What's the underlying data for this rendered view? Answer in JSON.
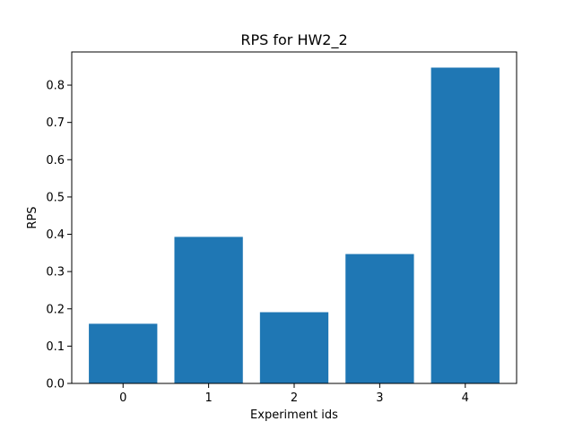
{
  "chart_data": {
    "type": "bar",
    "title": "RPS for HW2_2",
    "xlabel": "Experiment ids",
    "ylabel": "RPS",
    "categories": [
      "0",
      "1",
      "2",
      "3",
      "4"
    ],
    "values": [
      0.16,
      0.393,
      0.191,
      0.347,
      0.847
    ],
    "ylim": [
      0,
      0.889
    ],
    "yticks": [
      "0.0",
      "0.1",
      "0.2",
      "0.3",
      "0.4",
      "0.5",
      "0.6",
      "0.7",
      "0.8"
    ],
    "bar_color": "#1f77b4",
    "grid": false,
    "legend": "none"
  }
}
